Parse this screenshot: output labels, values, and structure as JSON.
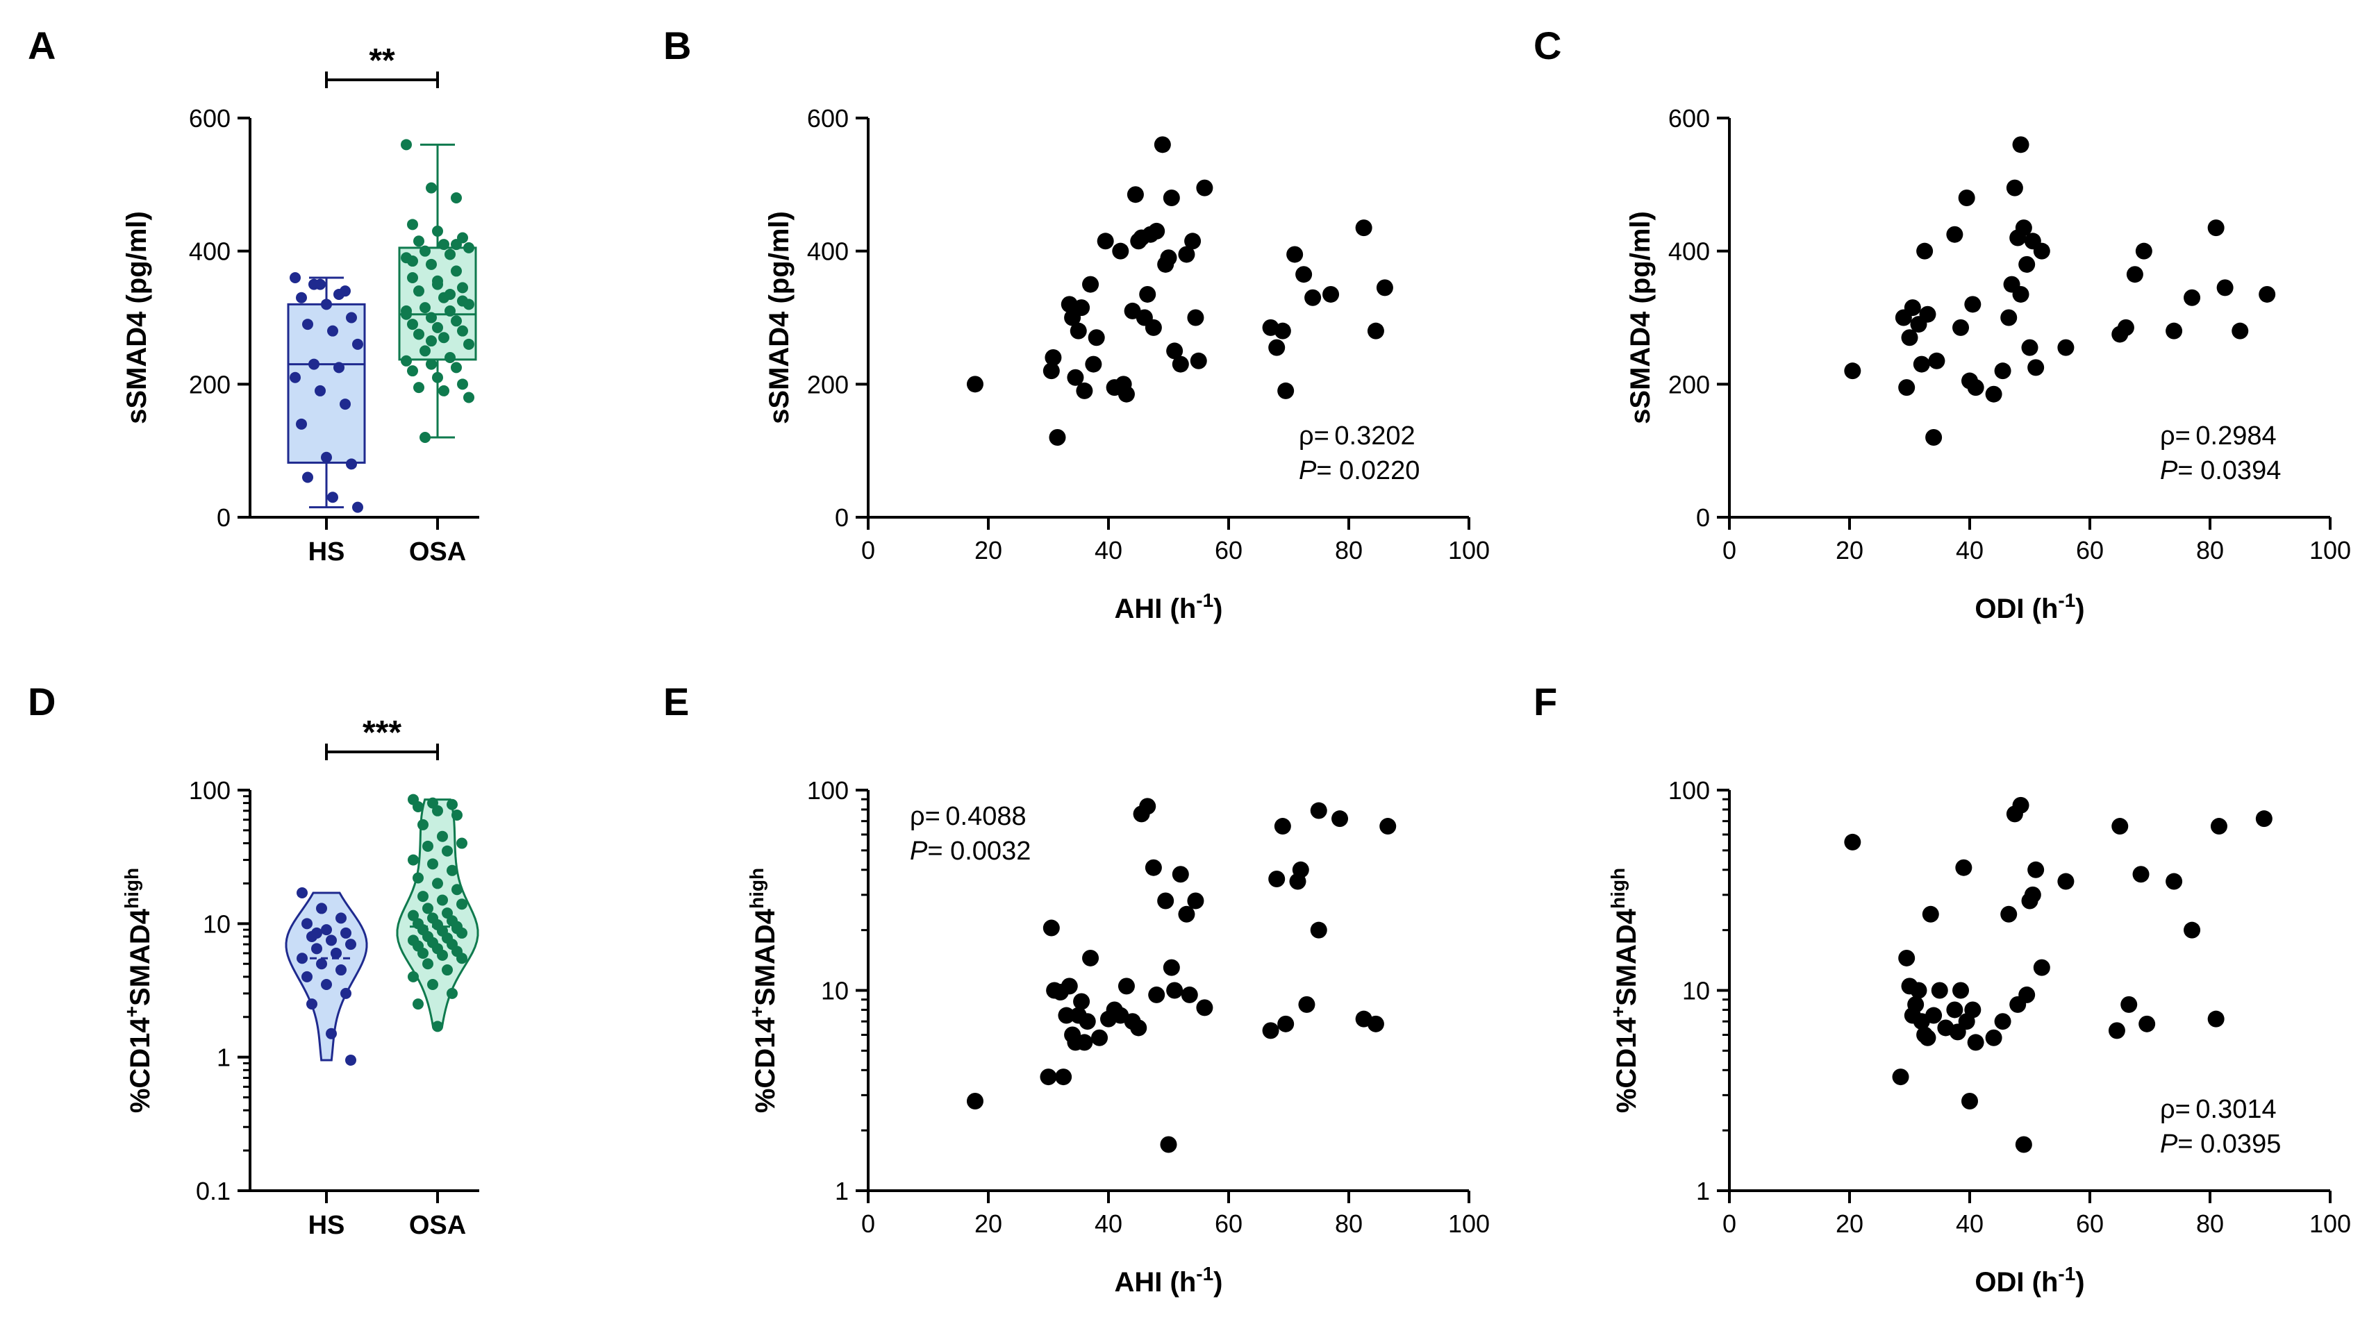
{
  "figure": {
    "colors": {
      "hs": "#1f2a8f",
      "hs_fill": "#c9ddf7",
      "osa": "#0f7a4e",
      "osa_fill": "#c8efe0",
      "points": "#000000"
    }
  },
  "chart_data": [
    {
      "id": "A",
      "type": "box",
      "letter": "A",
      "title": "",
      "ylabel": "sSMAD4 (pg/ml)",
      "ylim": [
        0,
        600
      ],
      "yscale": "linear",
      "yticks": [
        "0",
        "200",
        "400",
        "600"
      ],
      "categories": [
        "HS",
        "OSA"
      ],
      "significance": "**",
      "series": [
        {
          "name": "HS",
          "min": 15,
          "q1": 82,
          "median": 230,
          "q3": 320,
          "max": 360,
          "points": [
            360,
            350,
            340,
            330,
            320,
            300,
            290,
            280,
            260,
            230,
            225,
            210,
            190,
            170,
            140,
            90,
            80,
            60,
            30,
            15,
            350,
            335
          ]
        },
        {
          "name": "OSA",
          "min": 120,
          "q1": 237,
          "median": 305,
          "q3": 405,
          "max": 560,
          "points": [
            560,
            495,
            480,
            440,
            430,
            420,
            415,
            410,
            405,
            400,
            395,
            390,
            380,
            370,
            360,
            350,
            345,
            340,
            330,
            320,
            315,
            310,
            305,
            300,
            295,
            290,
            285,
            280,
            275,
            270,
            260,
            250,
            240,
            235,
            230,
            225,
            220,
            210,
            200,
            195,
            190,
            180,
            120,
            335,
            310,
            265,
            410,
            385,
            355,
            325
          ]
        }
      ]
    },
    {
      "id": "B",
      "type": "scatter",
      "letter": "B",
      "xlabel": "AHI (h",
      "xlabel_sup": "-1",
      "xlabel_end": ")",
      "ylabel": "sSMAD4 (pg/ml)",
      "xlim": [
        0,
        100
      ],
      "ylim": [
        0,
        600
      ],
      "yscale": "linear",
      "xticks": [
        "0",
        "20",
        "40",
        "60",
        "80",
        "100"
      ],
      "yticks": [
        "0",
        "200",
        "400",
        "600"
      ],
      "stat_rho": "ρ= 0.3202",
      "stat_p_label": "P",
      "stat_p_value": "= 0.0220",
      "x": [
        17.8,
        30.5,
        30.8,
        31.5,
        33.5,
        34.0,
        34.5,
        35.0,
        35.5,
        36.0,
        37.0,
        37.5,
        38.0,
        39.5,
        41.0,
        42.0,
        42.5,
        43.0,
        44.0,
        44.5,
        45.0,
        45.5,
        46.0,
        46.5,
        47.0,
        47.5,
        48.0,
        49.0,
        49.5,
        50.0,
        50.5,
        51.0,
        52.0,
        53.0,
        54.0,
        54.5,
        55.0,
        56.0,
        67.0,
        68.0,
        69.0,
        69.5,
        71.0,
        72.5,
        74.0,
        77.0,
        82.5,
        84.5,
        86.0
      ],
      "y": [
        200,
        220,
        240,
        120,
        320,
        300,
        210,
        280,
        315,
        190,
        350,
        230,
        270,
        415,
        195,
        400,
        200,
        185,
        310,
        485,
        415,
        420,
        300,
        335,
        425,
        285,
        430,
        560,
        380,
        390,
        480,
        250,
        230,
        395,
        415,
        300,
        235,
        495,
        285,
        255,
        280,
        190,
        395,
        365,
        330,
        335,
        435,
        280,
        345
      ]
    },
    {
      "id": "C",
      "type": "scatter",
      "letter": "C",
      "xlabel": "ODI (h",
      "xlabel_sup": "-1",
      "xlabel_end": ")",
      "ylabel": "sSMAD4 (pg/ml)",
      "xlim": [
        0,
        100
      ],
      "ylim": [
        0,
        600
      ],
      "yscale": "linear",
      "xticks": [
        "0",
        "20",
        "40",
        "60",
        "80",
        "100"
      ],
      "yticks": [
        "0",
        "200",
        "400",
        "600"
      ],
      "stat_rho": "ρ= 0.2984",
      "stat_p_label": "P",
      "stat_p_value": "= 0.0394",
      "x": [
        20.5,
        29.0,
        29.5,
        30.0,
        30.5,
        31.5,
        32.0,
        32.5,
        33.0,
        34.0,
        34.5,
        37.5,
        38.5,
        39.5,
        40.0,
        40.5,
        41.0,
        44.0,
        45.5,
        46.5,
        47.5,
        48.0,
        48.5,
        49.0,
        49.5,
        50.0,
        50.5,
        51.0,
        52.0,
        56.0,
        65.0,
        66.0,
        67.5,
        69.0,
        74.0,
        77.0,
        81.0,
        82.5,
        85.0,
        89.5,
        48.5,
        47.0
      ],
      "y": [
        220,
        300,
        195,
        270,
        315,
        290,
        230,
        400,
        305,
        120,
        235,
        425,
        285,
        480,
        205,
        320,
        195,
        185,
        220,
        300,
        495,
        420,
        560,
        435,
        380,
        255,
        415,
        225,
        400,
        255,
        275,
        285,
        365,
        400,
        280,
        330,
        435,
        345,
        280,
        335,
        335,
        350
      ]
    },
    {
      "id": "D",
      "type": "violin",
      "letter": "D",
      "ylabel": "%CD14",
      "ylabel_sup1": "+",
      "ylabel_mid": "SMAD4",
      "ylabel_sup2": "high",
      "ylim": [
        0.1,
        100
      ],
      "yscale": "log",
      "yticks": [
        "0.1",
        "1",
        "10",
        "100"
      ],
      "categories": [
        "HS",
        "OSA"
      ],
      "significance": "***",
      "series": [
        {
          "name": "HS",
          "min": 0.95,
          "max": 17,
          "median": 5.5,
          "points": [
            17,
            13,
            11,
            10,
            9,
            8.5,
            8,
            7.5,
            7,
            6.5,
            6,
            5.5,
            5,
            4.5,
            4,
            3.5,
            3,
            2.5,
            1.5,
            0.95,
            8.5,
            6
          ]
        },
        {
          "name": "OSA",
          "min": 1.7,
          "max": 85,
          "median": 9.5,
          "points": [
            85,
            80,
            78,
            75,
            70,
            65,
            55,
            45,
            40,
            38,
            35,
            30,
            28,
            25,
            22,
            20,
            18,
            16,
            15,
            14,
            13,
            12,
            11.5,
            11,
            10.5,
            10,
            9.8,
            9.5,
            9,
            8.8,
            8.5,
            8,
            7.8,
            7.5,
            7.2,
            7,
            6.8,
            6.5,
            6.2,
            6,
            5.8,
            5.5,
            5,
            4.5,
            4,
            3.5,
            3,
            2.5,
            1.7,
            9.2
          ]
        }
      ]
    },
    {
      "id": "E",
      "type": "scatter",
      "letter": "E",
      "xlabel": "AHI (h",
      "xlabel_sup": "-1",
      "xlabel_end": ")",
      "ylabel": "%CD14",
      "ylabel_sup1": "+",
      "ylabel_mid": "SMAD4",
      "ylabel_sup2": "high",
      "xlim": [
        0,
        100
      ],
      "ylim": [
        1,
        100
      ],
      "yscale": "log",
      "xticks": [
        "0",
        "20",
        "40",
        "60",
        "80",
        "100"
      ],
      "yticks": [
        "1",
        "10",
        "100"
      ],
      "stat_rho": "ρ= 0.4088",
      "stat_p_label": "P",
      "stat_p_value": "= 0.0032",
      "x": [
        17.8,
        30.0,
        30.5,
        31.0,
        32.0,
        32.5,
        33.0,
        33.5,
        34.0,
        34.5,
        35.0,
        35.5,
        36.0,
        36.5,
        37.0,
        38.5,
        40.0,
        41.0,
        42.0,
        43.0,
        44.0,
        45.0,
        45.5,
        46.5,
        47.5,
        48.0,
        49.5,
        50.0,
        50.5,
        51.0,
        52.0,
        53.0,
        53.5,
        54.5,
        56.0,
        67.0,
        68.0,
        69.0,
        69.5,
        71.5,
        72.0,
        73.0,
        75.0,
        75.0,
        78.5,
        82.5,
        84.5,
        86.5
      ],
      "y": [
        2.8,
        3.7,
        20.5,
        10,
        9.8,
        3.7,
        7.5,
        10.5,
        6,
        5.5,
        7.5,
        8.8,
        5.5,
        7,
        14.5,
        5.8,
        7.2,
        8,
        7.5,
        10.5,
        7,
        6.5,
        76,
        83,
        41,
        9.5,
        28,
        1.7,
        13,
        10,
        38,
        24,
        9.5,
        28,
        8.2,
        6.3,
        36,
        66,
        6.8,
        35,
        40,
        8.5,
        79,
        20,
        72,
        7.2,
        6.8,
        66
      ]
    },
    {
      "id": "F",
      "type": "scatter",
      "letter": "F",
      "xlabel": "ODI (h",
      "xlabel_sup": "-1",
      "xlabel_end": ")",
      "ylabel": "%CD14",
      "ylabel_sup1": "+",
      "ylabel_mid": "SMAD4",
      "ylabel_sup2": "high",
      "xlim": [
        0,
        100
      ],
      "ylim": [
        1,
        100
      ],
      "yscale": "log",
      "xticks": [
        "0",
        "20",
        "40",
        "60",
        "80",
        "100"
      ],
      "yticks": [
        "1",
        "10",
        "100"
      ],
      "stat_rho": "ρ= 0.3014",
      "stat_p_label": "P",
      "stat_p_value": "= 0.0395",
      "x": [
        20.5,
        28.5,
        29.5,
        30.0,
        30.5,
        31.0,
        31.5,
        32.0,
        32.5,
        33.0,
        33.5,
        34.0,
        35.0,
        36.0,
        37.5,
        38.0,
        38.5,
        39.0,
        39.5,
        40.0,
        40.5,
        41.0,
        44.0,
        45.5,
        46.5,
        47.5,
        48.0,
        48.5,
        49.0,
        49.5,
        50.0,
        50.5,
        51.0,
        52.0,
        56.0,
        64.5,
        65.0,
        66.5,
        68.5,
        69.5,
        74.0,
        77.0,
        81.0,
        81.5,
        89.0
      ],
      "y": [
        55,
        3.7,
        14.5,
        10.5,
        7.5,
        8.5,
        10,
        7,
        6,
        5.8,
        24,
        7.5,
        10,
        6.5,
        8,
        6.2,
        10,
        41,
        7,
        2.8,
        8,
        5.5,
        5.8,
        7,
        24,
        76,
        8.5,
        84,
        1.7,
        9.5,
        28,
        30,
        40,
        13,
        35,
        6.3,
        66,
        8.5,
        38,
        6.8,
        35,
        20,
        7.2,
        66,
        72
      ]
    }
  ]
}
